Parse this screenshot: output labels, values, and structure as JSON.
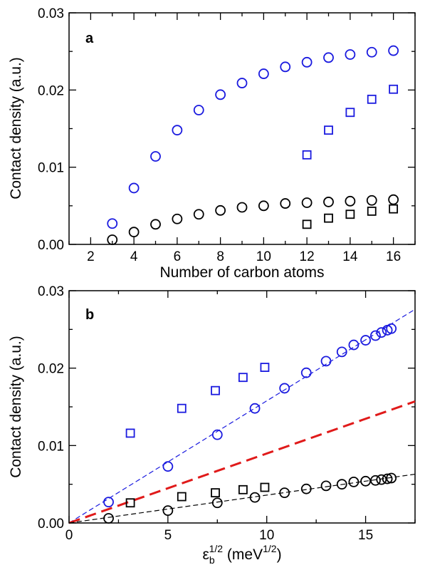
{
  "chart_data": [
    {
      "type": "scatter",
      "panel_label": "a",
      "xlabel": "Number of carbon atoms",
      "ylabel": "Contact density (a.u.)",
      "xlim": [
        1,
        17
      ],
      "ylim": [
        0,
        0.03
      ],
      "x_ticks": [
        2,
        4,
        6,
        8,
        10,
        12,
        14,
        16
      ],
      "x_tick_labels": [
        "2",
        "4",
        "6",
        "8",
        "10",
        "12",
        "14",
        "16"
      ],
      "y_ticks": [
        0,
        0.01,
        0.02,
        0.03
      ],
      "y_tick_labels": [
        "0.00",
        "0.01",
        "0.02",
        "0.03"
      ],
      "grid": false,
      "series": [
        {
          "marker": "circle",
          "color": "#1a1adf",
          "x": [
            3,
            4,
            5,
            6,
            7,
            8,
            9,
            10,
            11,
            12,
            13,
            14,
            15,
            16
          ],
          "y": [
            0.0027,
            0.0073,
            0.0114,
            0.0148,
            0.0174,
            0.0194,
            0.0209,
            0.0221,
            0.023,
            0.0236,
            0.0242,
            0.0246,
            0.0249,
            0.0251
          ]
        },
        {
          "marker": "square",
          "color": "#1a1adf",
          "x": [
            12,
            13,
            14,
            15,
            16
          ],
          "y": [
            0.0116,
            0.0148,
            0.0171,
            0.0188,
            0.0201
          ]
        },
        {
          "marker": "circle",
          "color": "#000000",
          "x": [
            3,
            4,
            5,
            6,
            7,
            8,
            9,
            10,
            11,
            12,
            13,
            14,
            15,
            16
          ],
          "y": [
            0.0006,
            0.0016,
            0.0026,
            0.0033,
            0.0039,
            0.0044,
            0.0048,
            0.005,
            0.0053,
            0.0054,
            0.0055,
            0.0056,
            0.0057,
            0.0058
          ]
        },
        {
          "marker": "square",
          "color": "#000000",
          "x": [
            12,
            13,
            14,
            15,
            16
          ],
          "y": [
            0.0026,
            0.0034,
            0.0039,
            0.0043,
            0.0046
          ]
        }
      ]
    },
    {
      "type": "scatter",
      "panel_label": "b",
      "xlabel_base": "ε",
      "xlabel_sub": "b",
      "xlabel_sup": "1/2",
      "xlabel_unit_open": " (meV",
      "xlabel_unit_sup": "1/2",
      "xlabel_unit_close": ")",
      "ylabel": "Contact density (a.u.)",
      "xlim": [
        0,
        17.5
      ],
      "ylim": [
        0,
        0.03
      ],
      "x_ticks": [
        0,
        5,
        10,
        15
      ],
      "x_tick_labels": [
        "0",
        "5",
        "10",
        "15"
      ],
      "y_ticks": [
        0,
        0.01,
        0.02,
        0.03
      ],
      "y_tick_labels": [
        "0.00",
        "0.01",
        "0.02",
        "0.03"
      ],
      "grid": false,
      "series": [
        {
          "marker": "circle",
          "color": "#1a1adf",
          "x": [
            2.0,
            5.0,
            7.5,
            9.4,
            10.9,
            12.0,
            13.0,
            13.8,
            14.4,
            15.0,
            15.5,
            15.8,
            16.1,
            16.3
          ],
          "y": [
            0.0027,
            0.0073,
            0.0114,
            0.0148,
            0.0174,
            0.0194,
            0.0209,
            0.0221,
            0.023,
            0.0236,
            0.0242,
            0.0246,
            0.0249,
            0.0251
          ]
        },
        {
          "marker": "square",
          "color": "#1a1adf",
          "x": [
            3.1,
            5.7,
            7.4,
            8.8,
            9.9
          ],
          "y": [
            0.0116,
            0.0148,
            0.0171,
            0.0188,
            0.0201
          ]
        },
        {
          "marker": "circle",
          "color": "#000000",
          "x": [
            2.0,
            5.0,
            7.5,
            9.4,
            10.9,
            12.0,
            13.0,
            13.8,
            14.4,
            15.0,
            15.5,
            15.8,
            16.1,
            16.3
          ],
          "y": [
            0.0006,
            0.0016,
            0.0026,
            0.0033,
            0.0039,
            0.0044,
            0.0048,
            0.005,
            0.0053,
            0.0054,
            0.0055,
            0.0056,
            0.0057,
            0.0058
          ]
        },
        {
          "marker": "square",
          "color": "#000000",
          "x": [
            3.1,
            5.7,
            7.4,
            8.8,
            9.9
          ],
          "y": [
            0.0026,
            0.0034,
            0.0039,
            0.0043,
            0.0046
          ]
        }
      ],
      "lines": [
        {
          "style": "dashed-thin",
          "color": "#1a1adf",
          "x": [
            0,
            17.5
          ],
          "y": [
            0,
            0.0276
          ]
        },
        {
          "style": "dashed-thick",
          "color": "#e01a1a",
          "x": [
            0,
            17.5
          ],
          "y": [
            0,
            0.0157
          ]
        },
        {
          "style": "dashed-thin",
          "color": "#000000",
          "x": [
            0,
            17.5
          ],
          "y": [
            0,
            0.0063
          ]
        }
      ]
    }
  ]
}
